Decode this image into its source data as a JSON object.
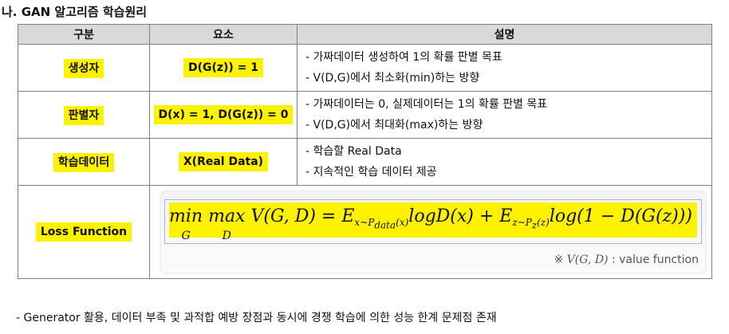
{
  "title": "나. GAN 알고리즘 학습원리",
  "table": {
    "headers": [
      "구분",
      "요소",
      "설명"
    ],
    "rows": [
      {
        "name": "생성자",
        "element": "D(G(z)) = 1",
        "desc": [
          "- 가짜데이터 생성하여 1의 확률 판별 목표",
          "- V(D,G)에서 최소화(min)하는 방향"
        ]
      },
      {
        "name": "판별자",
        "element": "D(x) = 1, D(G(z)) = 0",
        "desc": [
          "- 가짜데이터는 0, 실제데이터는 1의 확률 판별 목표",
          "- V(D,G)에서 최대화(max)하는 방향"
        ]
      },
      {
        "name": "학습데이터",
        "element": "X(Real Data)",
        "desc": [
          "- 학습할 Real Data",
          "- 지속적인 학습 데이터 제공"
        ]
      }
    ],
    "loss": {
      "name": "Loss Function",
      "min": "min",
      "min_sub": "G",
      "max": "max",
      "max_sub": "D",
      "lhs": "V(G, D) = ",
      "term1": "E",
      "term1_sub": "x~P",
      "term1_subsub": "data",
      "term1_rest": "(x)",
      "term1_body": "logD(x) + ",
      "term2": "E",
      "term2_sub": "z~P",
      "term2_subsub": "z",
      "term2_rest": "(z)",
      "term2_body": "log(1 − D(G(z)))",
      "note_prefix": "※ ",
      "note_v": "V(G, D)",
      "note_suffix": " : value function"
    }
  },
  "footer": "- Generator 활용, 데이터 부족 및 과적합 예방 장점과 동시에 경쟁 학습에 의한 성능 한계 문제점 존재"
}
